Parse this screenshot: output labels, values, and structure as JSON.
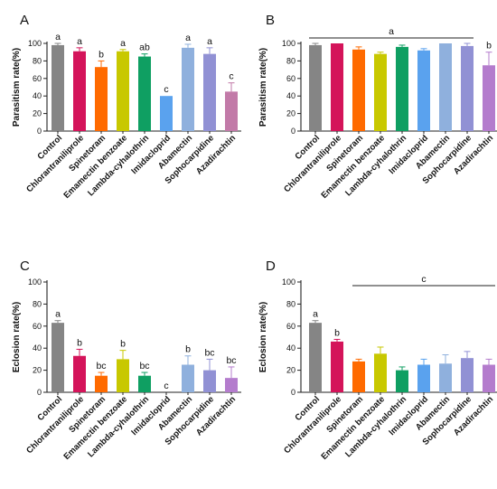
{
  "chart_data": [
    {
      "type": "bar",
      "panel": "A",
      "ylabel": "Parasitism rate(%)",
      "ylim": [
        0,
        100
      ],
      "yticks": [
        "0",
        "20",
        "40",
        "60",
        "80",
        "100"
      ],
      "categories": [
        "Control",
        "Chlorantraniliprole",
        "Spinetoram",
        "Emamectin benzoate",
        "Lambda-cyhalothrin",
        "Imidacloprid",
        "Abamectin",
        "Sophocarpidine",
        "Azadirachtin"
      ],
      "values": [
        98,
        91,
        73,
        91,
        85,
        40,
        95,
        88,
        45
      ],
      "errors": [
        2,
        4,
        7,
        2,
        3,
        0,
        4,
        7,
        10
      ],
      "colors": [
        "#858585",
        "#d4145a",
        "#ff6a00",
        "#c8c800",
        "#0f9f62",
        "#5aa2ee",
        "#8fb0dd",
        "#9191d4",
        "#c27aa8"
      ],
      "letters": [
        "a",
        "a",
        "b",
        "a",
        "ab",
        "c",
        "a",
        "a",
        "c"
      ]
    },
    {
      "type": "bar",
      "panel": "B",
      "ylabel": "Parasitism rate(%)",
      "ylim": [
        0,
        100
      ],
      "yticks": [
        "0",
        "20",
        "40",
        "60",
        "80",
        "100"
      ],
      "categories": [
        "Control",
        "Chlorantraniliprole",
        "Spinetoram",
        "Emamectin benzoate",
        "Lambda-cyhalothrin",
        "Imidacloprid",
        "Abamectin",
        "Sophocarpidine",
        "Azadirachtin"
      ],
      "values": [
        98,
        100,
        93,
        88,
        96,
        92,
        100,
        97,
        75
      ],
      "errors": [
        2,
        0,
        3,
        2,
        2,
        2,
        0,
        3,
        15
      ],
      "colors": [
        "#858585",
        "#d4145a",
        "#ff6a00",
        "#c8c800",
        "#0f9f62",
        "#5aa2ee",
        "#8fb0dd",
        "#9191d4",
        "#b47ccd"
      ],
      "group_letter": "a",
      "group_span": [
        0,
        7
      ],
      "letters": [
        "",
        "",
        "",
        "",
        "",
        "",
        "",
        "",
        "b"
      ]
    },
    {
      "type": "bar",
      "panel": "C",
      "ylabel": "Eclosion rate(%)",
      "ylim": [
        0,
        100
      ],
      "yticks": [
        "0",
        "20",
        "40",
        "60",
        "80",
        "100"
      ],
      "categories": [
        "Control",
        "Chlorantraniliprole",
        "Spinetoram",
        "Emamectin benzoate",
        "Lambda-cyhalothrin",
        "Imidacloprid",
        "Abamectin",
        "Sophocarpidine",
        "Azadirachtin"
      ],
      "values": [
        63,
        33,
        15,
        30,
        15,
        0,
        25,
        20,
        13
      ],
      "errors": [
        2,
        6,
        3,
        8,
        3,
        0,
        8,
        10,
        10
      ],
      "colors": [
        "#858585",
        "#d4145a",
        "#ff6a00",
        "#c8c800",
        "#0f9f62",
        "#5aa2ee",
        "#8fb0dd",
        "#9191d4",
        "#b47ccd"
      ],
      "letters": [
        "a",
        "b",
        "bc",
        "b",
        "bc",
        "c",
        "b",
        "bc",
        "bc"
      ]
    },
    {
      "type": "bar",
      "panel": "D",
      "ylabel": "Eclosion rate(%)",
      "ylim": [
        0,
        100
      ],
      "yticks": [
        "0",
        "20",
        "40",
        "60",
        "80",
        "100"
      ],
      "categories": [
        "Control",
        "Chlorantraniliprole",
        "Spinetoram",
        "Emamectin benzoate",
        "Lambda-cyhalothrin",
        "Imidacloprid",
        "Abamectin",
        "Sophocarpidine",
        "Azadirachtin"
      ],
      "values": [
        63,
        46,
        28,
        35,
        20,
        25,
        26,
        31,
        25
      ],
      "errors": [
        2,
        2,
        2,
        6,
        3,
        5,
        8,
        6,
        5
      ],
      "colors": [
        "#858585",
        "#d4145a",
        "#ff6a00",
        "#c8c800",
        "#0f9f62",
        "#5aa2ee",
        "#8fb0dd",
        "#9191d4",
        "#b47ccd"
      ],
      "letters": [
        "a",
        "b",
        "",
        "",
        "",
        "",
        "",
        "",
        ""
      ],
      "group_letter": "c",
      "group_span": [
        2,
        8
      ]
    }
  ]
}
